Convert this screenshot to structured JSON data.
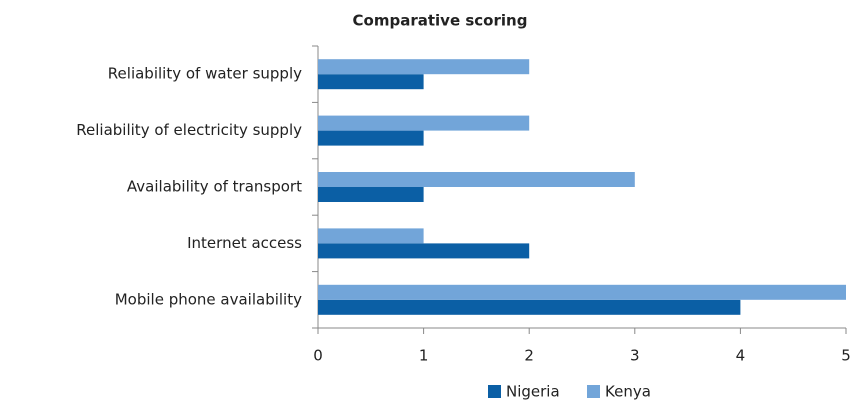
{
  "chart_data": {
    "type": "hbar",
    "title": "Comparative scoring",
    "categories": [
      "Reliability of water supply",
      "Reliability of electricity supply",
      "Availability of transport",
      "Internet access",
      "Mobile phone availability"
    ],
    "series": [
      {
        "name": "Nigeria",
        "color": "#0b5fa5",
        "values": [
          1,
          1,
          1,
          2,
          4
        ]
      },
      {
        "name": "Kenya",
        "color": "#72a5d9",
        "values": [
          2,
          2,
          3,
          1,
          5
        ]
      }
    ],
    "xlim": [
      0,
      5
    ],
    "xticks": [
      0,
      1,
      2,
      3,
      4,
      5
    ],
    "grid": false,
    "legend": "bottom"
  }
}
